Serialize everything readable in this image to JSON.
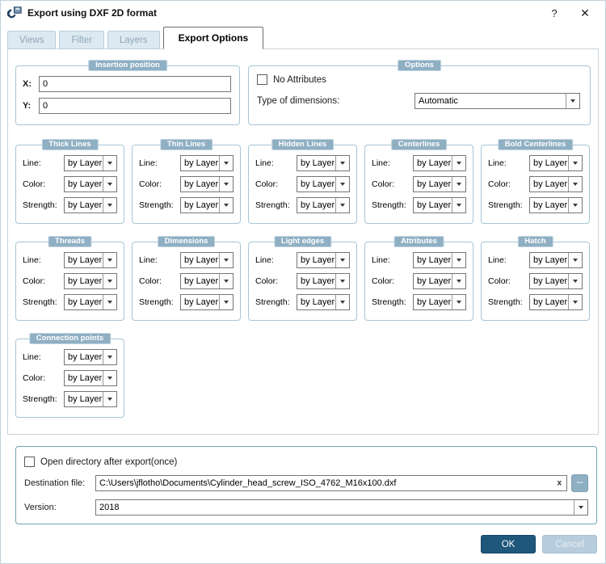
{
  "window": {
    "title": "Export using DXF 2D format",
    "help_label": "?",
    "close_label": "✕"
  },
  "tabs": [
    {
      "label": "Views",
      "active": false
    },
    {
      "label": "Filter",
      "active": false
    },
    {
      "label": "Layers",
      "active": false
    },
    {
      "label": "Export Options",
      "active": true
    }
  ],
  "insertion_position": {
    "title": "Insertion position",
    "x_label": "X:",
    "x_value": "0",
    "y_label": "Y:",
    "y_value": "0"
  },
  "options": {
    "title": "Options",
    "no_attributes_label": "No Attributes",
    "type_of_dimensions_label": "Type of dimensions:",
    "type_of_dimensions_value": "Automatic"
  },
  "style_groups": {
    "field_labels": [
      "Line:",
      "Color:",
      "Strength:"
    ],
    "field_value": "by Layer",
    "rows": [
      [
        "Thick Lines",
        "Thin Lines",
        "Hidden Lines",
        "Centerlines",
        "Bold Centerlines"
      ],
      [
        "Threads",
        "Dimensions",
        "Light edges",
        "Attributes",
        "Hatch"
      ],
      [
        "Connection points"
      ]
    ]
  },
  "export_panel": {
    "open_directory_label": "Open directory after export(once)",
    "destination_label": "Destination file:",
    "destination_value": "C:\\Users\\jflotho\\Documents\\Cylinder_head_screw_ISO_4762_M16x100.dxf",
    "clear_label": "x",
    "browse_label": "...",
    "version_label": "Version:",
    "version_value": "2018"
  },
  "actions": {
    "ok_label": "OK",
    "cancel_label": "Cancel"
  },
  "colors": {
    "accent_dark": "#1f567c",
    "accent_light": "#b7cdde",
    "group_border": "#a6c5d7",
    "badge_bg": "#8fafc3",
    "panel_border": "#74a3b8",
    "tab_inactive_bg": "#dde9f2"
  }
}
